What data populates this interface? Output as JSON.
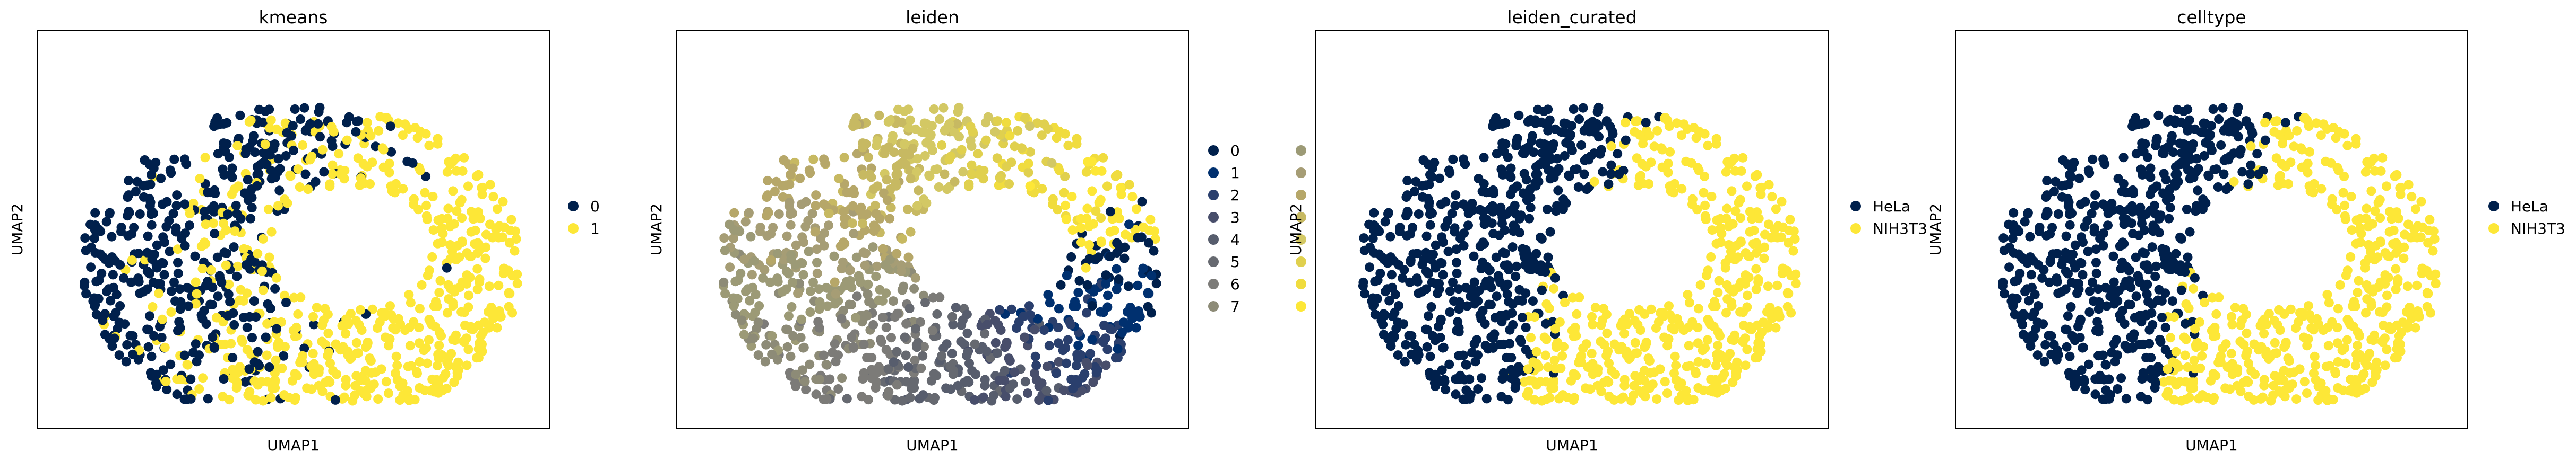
{
  "chart_data": [
    {
      "type": "scatter",
      "title": "kmeans",
      "xlabel": "UMAP1",
      "ylabel": "UMAP2",
      "grid": false,
      "legend": "right",
      "n_points": 1000,
      "series": [
        {
          "name": "0",
          "color": "#00204c"
        },
        {
          "name": "1",
          "color": "#fde737"
        }
      ]
    },
    {
      "type": "scatter",
      "title": "leiden",
      "xlabel": "UMAP1",
      "ylabel": "UMAP2",
      "grid": false,
      "legend": "right",
      "n_points": 1000,
      "series": [
        {
          "name": "0",
          "color": "#00204c"
        },
        {
          "name": "1",
          "color": "#00306f"
        },
        {
          "name": "2",
          "color": "#2a3f6d"
        },
        {
          "name": "3",
          "color": "#484e6b"
        },
        {
          "name": "4",
          "color": "#575d6d"
        },
        {
          "name": "5",
          "color": "#666970"
        },
        {
          "name": "6",
          "color": "#7c7b78"
        },
        {
          "name": "7",
          "color": "#8d8b77"
        },
        {
          "name": "",
          "color": "#9c9a76"
        },
        {
          "name": "",
          "color": "#a69d75"
        },
        {
          "name": "",
          "color": "#b6a769"
        },
        {
          "name": "",
          "color": "#c7b962"
        },
        {
          "name": "",
          "color": "#d3c864"
        },
        {
          "name": "",
          "color": "#e0d04e"
        },
        {
          "name": "",
          "color": "#f0dc3e"
        },
        {
          "name": "",
          "color": "#fde737"
        }
      ]
    },
    {
      "type": "scatter",
      "title": "leiden_curated",
      "xlabel": "UMAP1",
      "ylabel": "UMAP2",
      "grid": false,
      "legend": "right",
      "n_points": 1000,
      "series": [
        {
          "name": "HeLa",
          "color": "#00204c"
        },
        {
          "name": "NIH3T3",
          "color": "#fde737"
        }
      ]
    },
    {
      "type": "scatter",
      "title": "celltype",
      "xlabel": "UMAP1",
      "ylabel": "UMAP2",
      "grid": false,
      "legend": "right",
      "n_points": 1000,
      "series": [
        {
          "name": "HeLa",
          "color": "#00204c"
        },
        {
          "name": "NIH3T3",
          "color": "#fde737"
        }
      ]
    }
  ]
}
